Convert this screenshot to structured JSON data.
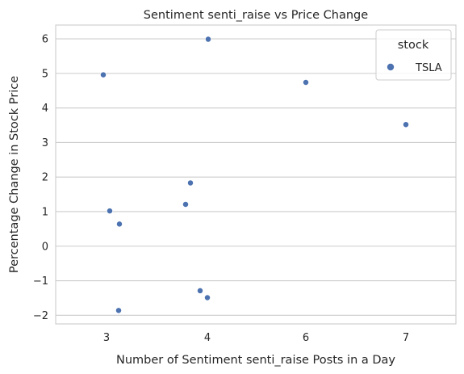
{
  "chart_data": {
    "type": "scatter",
    "title": "Sentiment senti_raise vs Price Change",
    "xlabel": "Number of Sentiment senti_raise Posts in a Day",
    "ylabel": "Percentage Change in Stock Price",
    "x_categories": [
      "3",
      "4",
      "6",
      "7"
    ],
    "ylim": [
      -2.25,
      6.4
    ],
    "yticks": [
      6,
      5,
      4,
      3,
      2,
      1,
      0,
      -1,
      -2
    ],
    "ytick_labels": [
      "6",
      "5",
      "4",
      "3",
      "2",
      "1",
      "0",
      "−1",
      "−2"
    ],
    "grid": "horizontal",
    "legend": {
      "title": "stock",
      "placement": "top-right"
    },
    "series": [
      {
        "name": "TSLA",
        "color": "#4c72b0",
        "points": [
          {
            "x": "3",
            "y": 4.96
          },
          {
            "x": "3",
            "y": 1.02
          },
          {
            "x": "3",
            "y": 0.64
          },
          {
            "x": "3",
            "y": -1.86
          },
          {
            "x": "4",
            "y": 5.99
          },
          {
            "x": "4",
            "y": 1.83
          },
          {
            "x": "4",
            "y": 1.21
          },
          {
            "x": "4",
            "y": -1.29
          },
          {
            "x": "4",
            "y": -1.49
          },
          {
            "x": "6",
            "y": 4.74
          },
          {
            "x": "7",
            "y": 3.52
          }
        ]
      }
    ]
  }
}
